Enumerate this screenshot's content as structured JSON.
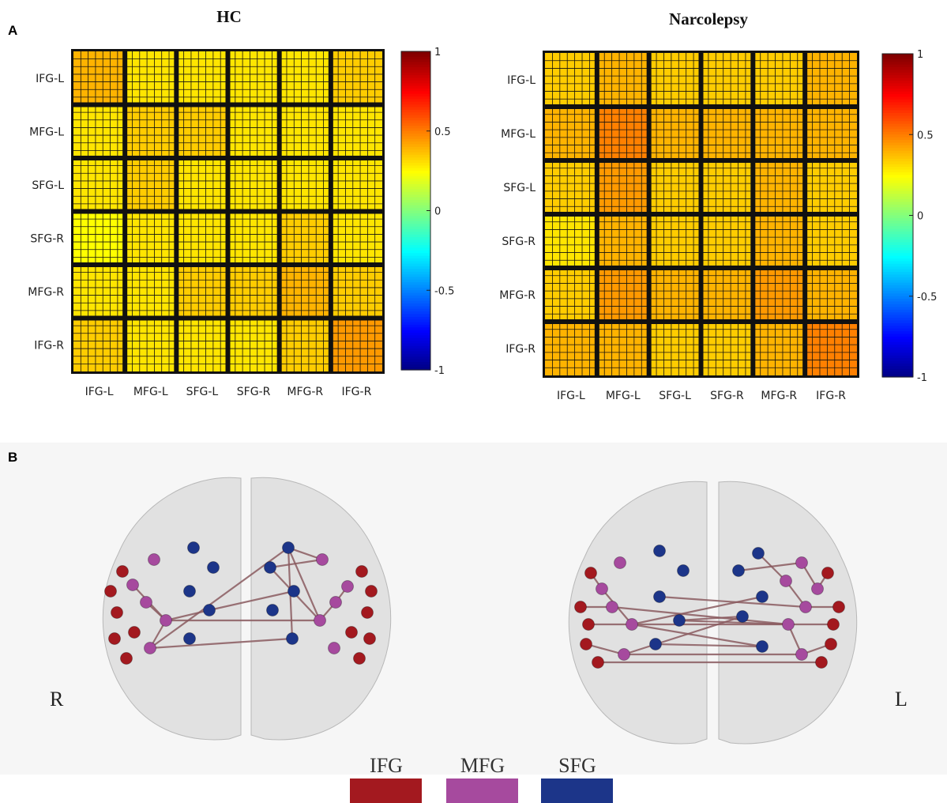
{
  "panel_a": {
    "label": "A",
    "heatmaps": [
      {
        "title": "HC",
        "regions": [
          "IFG-L",
          "MFG-L",
          "SFG-L",
          "SFG-R",
          "MFG-R",
          "IFG-R"
        ],
        "values": [
          [
            0.4,
            0.3,
            0.3,
            0.3,
            0.3,
            0.35
          ],
          [
            0.3,
            0.35,
            0.35,
            0.3,
            0.3,
            0.3
          ],
          [
            0.3,
            0.35,
            0.3,
            0.3,
            0.3,
            0.3
          ],
          [
            0.25,
            0.3,
            0.3,
            0.3,
            0.35,
            0.3
          ],
          [
            0.3,
            0.3,
            0.35,
            0.35,
            0.4,
            0.35
          ],
          [
            0.35,
            0.3,
            0.3,
            0.3,
            0.35,
            0.45
          ]
        ],
        "colorbar": {
          "lim": [
            -1,
            1
          ],
          "ticks": [
            1,
            0.5,
            0,
            -0.5,
            -1
          ]
        }
      },
      {
        "title": "Narcolepsy",
        "regions": [
          "IFG-L",
          "MFG-L",
          "SFG-L",
          "SFG-R",
          "MFG-R",
          "IFG-R"
        ],
        "values": [
          [
            0.35,
            0.4,
            0.35,
            0.35,
            0.35,
            0.4
          ],
          [
            0.4,
            0.5,
            0.4,
            0.4,
            0.4,
            0.4
          ],
          [
            0.35,
            0.45,
            0.35,
            0.35,
            0.4,
            0.35
          ],
          [
            0.3,
            0.4,
            0.35,
            0.35,
            0.4,
            0.35
          ],
          [
            0.35,
            0.45,
            0.4,
            0.4,
            0.45,
            0.4
          ],
          [
            0.4,
            0.4,
            0.35,
            0.35,
            0.4,
            0.5
          ]
        ],
        "colorbar": {
          "lim": [
            -1,
            1
          ],
          "ticks": [
            1,
            0.5,
            0,
            -0.5,
            -1
          ]
        }
      }
    ]
  },
  "panel_b": {
    "label": "B",
    "side_labels": [
      "R",
      "L"
    ],
    "legend": [
      {
        "name": "IFG",
        "color": "#a3191f"
      },
      {
        "name": "MFG",
        "color": "#a64a9e"
      },
      {
        "name": "SFG",
        "color": "#1c3589"
      }
    ]
  }
}
